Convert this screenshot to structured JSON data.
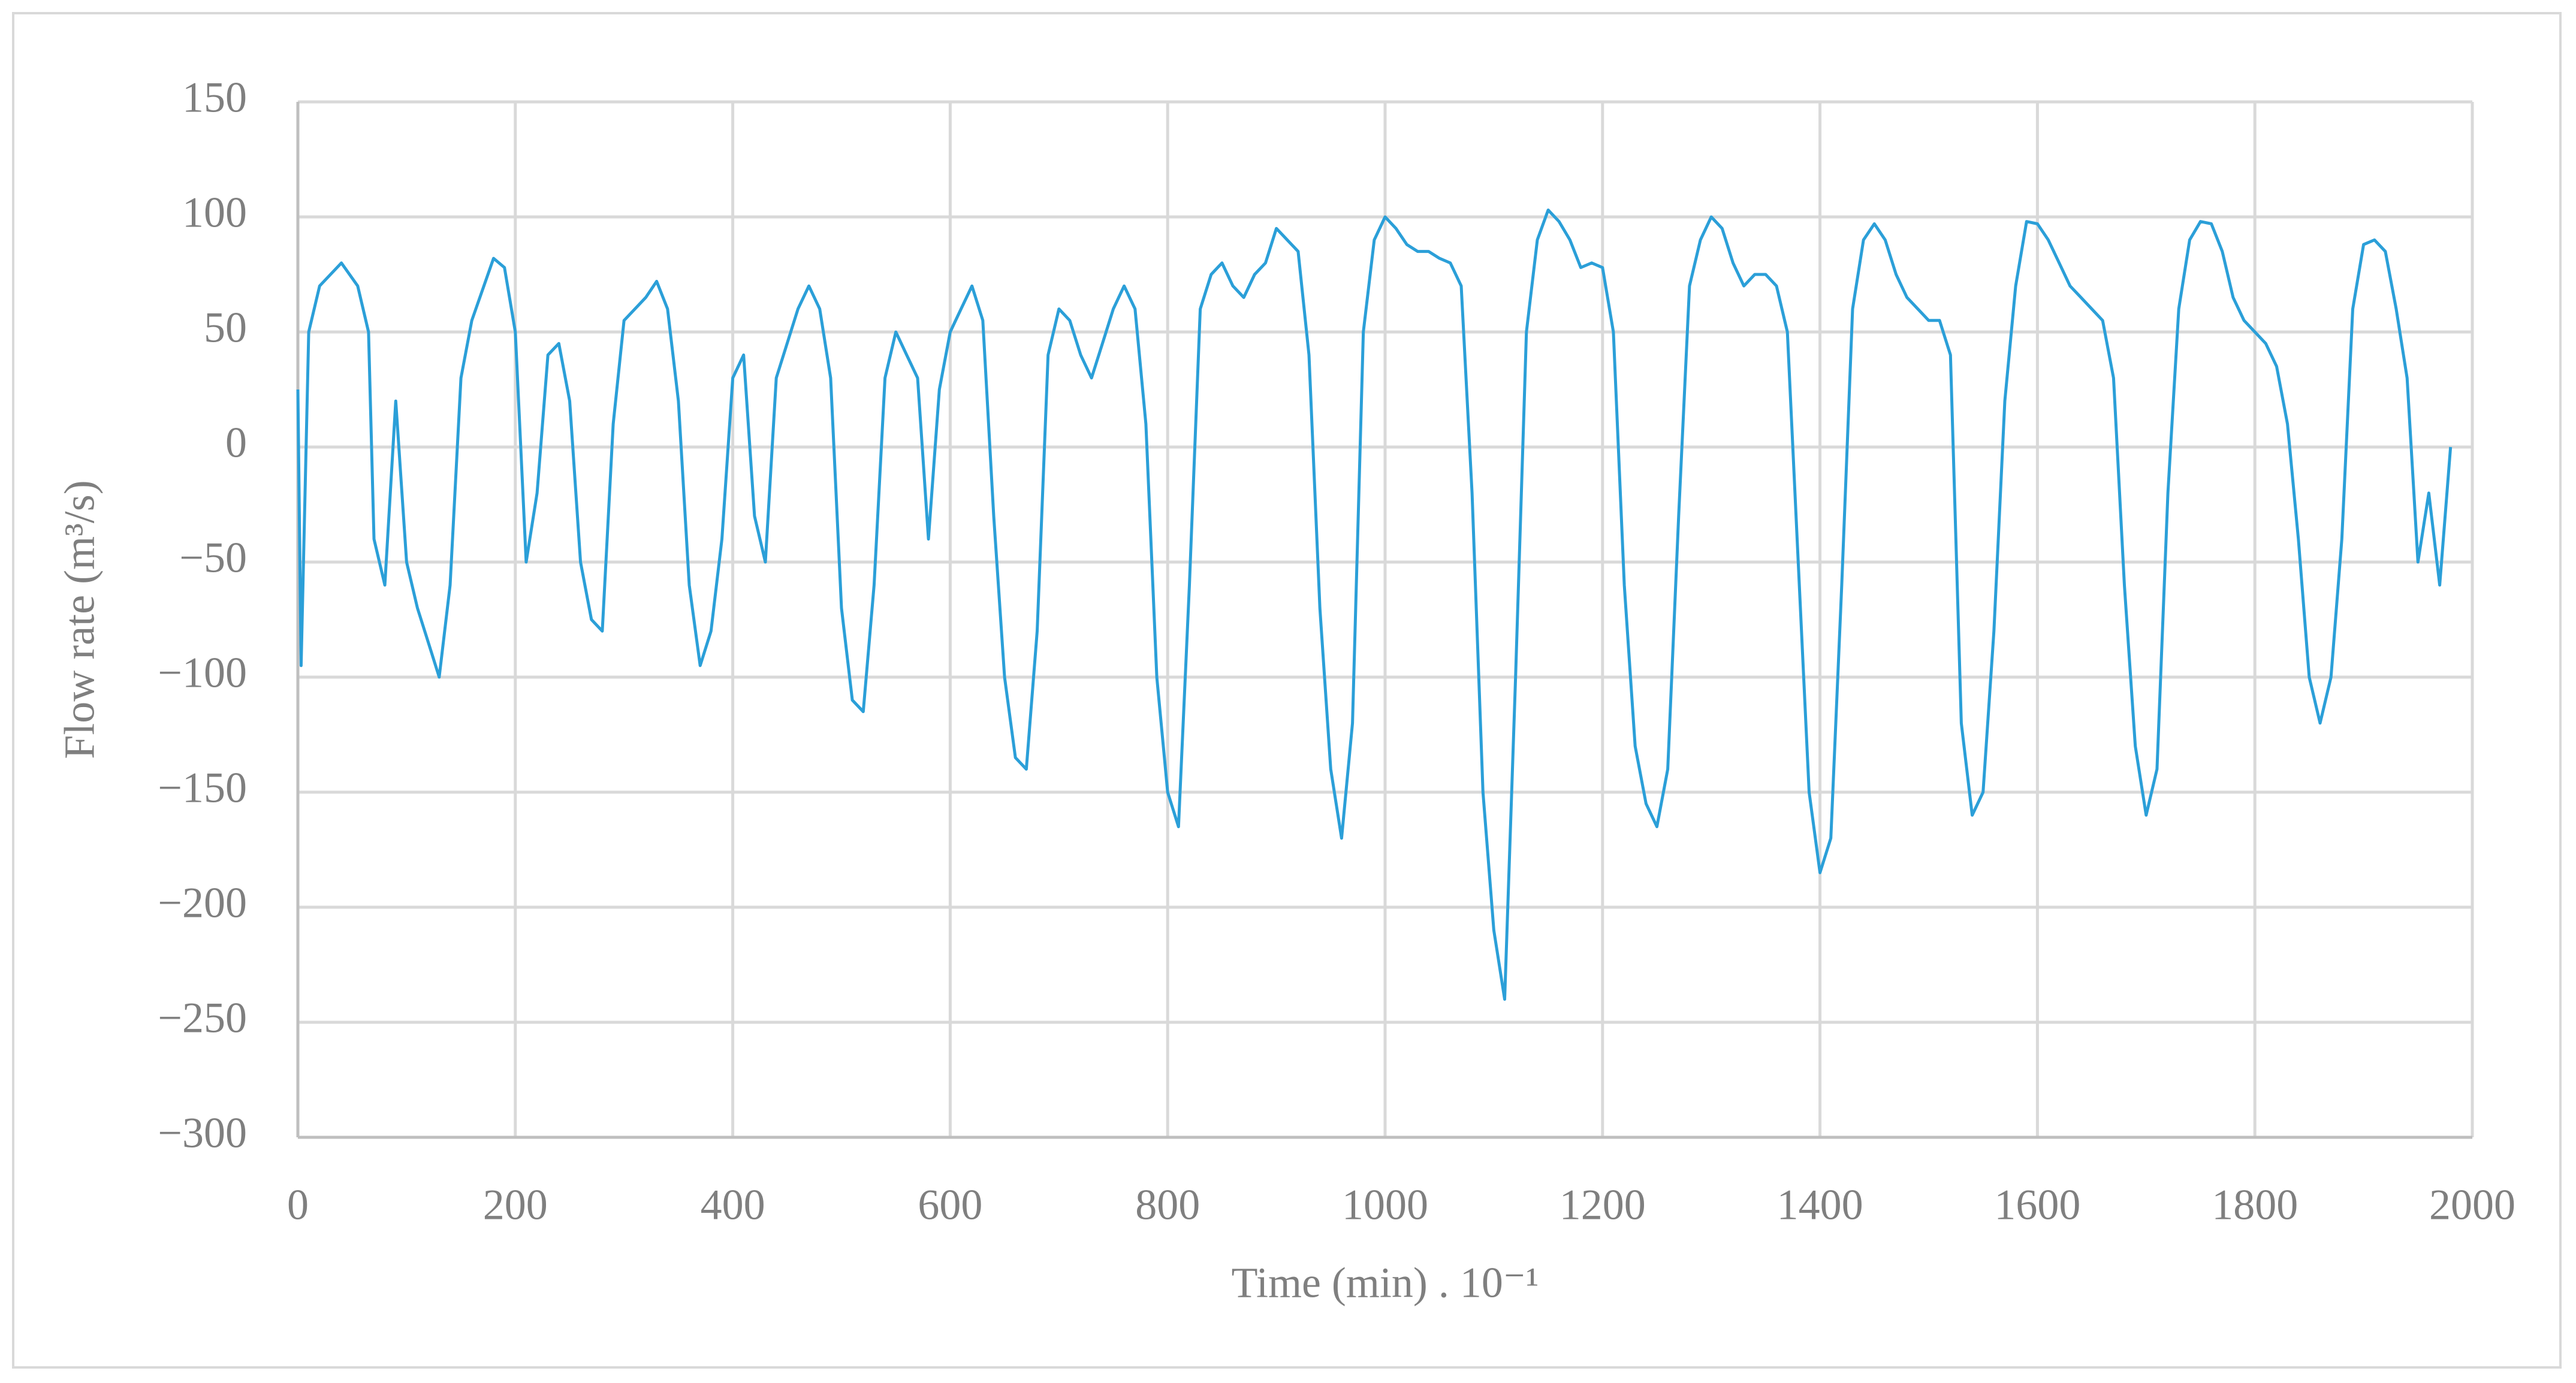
{
  "chart_data": {
    "type": "line",
    "xlabel": "Time  (min) . 10⁻¹",
    "ylabel": "Flow rate (m³/s)",
    "color": "#2b9fd8",
    "grid": true,
    "xlim": [
      0,
      2000
    ],
    "ylim": [
      -300,
      150
    ],
    "xticks": [
      0,
      200,
      400,
      600,
      800,
      1000,
      1200,
      1400,
      1600,
      1800,
      2000
    ],
    "yticks": [
      {
        "value": -300,
        "label": "−300"
      },
      {
        "value": -250,
        "label": "−250"
      },
      {
        "value": -200,
        "label": "−200"
      },
      {
        "value": -150,
        "label": "−150"
      },
      {
        "value": -100,
        "label": "−100"
      },
      {
        "value": -50,
        "label": "−50"
      },
      0,
      50,
      100,
      150
    ],
    "x": [
      0,
      3,
      10,
      20,
      40,
      55,
      65,
      70,
      80,
      90,
      100,
      110,
      120,
      130,
      140,
      150,
      160,
      180,
      190,
      200,
      210,
      220,
      230,
      240,
      250,
      260,
      270,
      280,
      290,
      300,
      320,
      330,
      340,
      350,
      360,
      370,
      380,
      390,
      400,
      410,
      420,
      430,
      440,
      460,
      470,
      480,
      490,
      500,
      510,
      520,
      530,
      540,
      550,
      560,
      570,
      580,
      590,
      600,
      610,
      620,
      630,
      640,
      650,
      660,
      670,
      680,
      690,
      700,
      710,
      720,
      730,
      740,
      750,
      760,
      770,
      780,
      790,
      800,
      810,
      820,
      830,
      840,
      850,
      860,
      870,
      880,
      890,
      900,
      910,
      920,
      930,
      940,
      950,
      960,
      970,
      980,
      990,
      1000,
      1010,
      1020,
      1030,
      1040,
      1050,
      1060,
      1070,
      1080,
      1090,
      1100,
      1110,
      1120,
      1130,
      1140,
      1150,
      1160,
      1170,
      1180,
      1190,
      1200,
      1210,
      1220,
      1230,
      1240,
      1250,
      1260,
      1270,
      1280,
      1290,
      1300,
      1310,
      1320,
      1330,
      1340,
      1350,
      1360,
      1370,
      1380,
      1390,
      1400,
      1410,
      1420,
      1430,
      1440,
      1450,
      1460,
      1470,
      1480,
      1490,
      1500,
      1510,
      1520,
      1530,
      1540,
      1550,
      1560,
      1570,
      1580,
      1590,
      1600,
      1610,
      1620,
      1630,
      1640,
      1650,
      1660,
      1670,
      1680,
      1690,
      1700,
      1710,
      1720,
      1730,
      1740,
      1750,
      1760,
      1770,
      1780,
      1790,
      1800,
      1810,
      1820,
      1830,
      1840,
      1850,
      1860,
      1870,
      1880,
      1890,
      1900,
      1910,
      1920,
      1930,
      1940,
      1950,
      1960,
      1970,
      1980
    ],
    "values": [
      25,
      -95,
      50,
      70,
      80,
      70,
      50,
      -40,
      -60,
      20,
      -50,
      -70,
      -85,
      -100,
      -60,
      30,
      55,
      82,
      78,
      50,
      -50,
      -20,
      40,
      45,
      20,
      -50,
      -75,
      -80,
      10,
      55,
      65,
      72,
      60,
      20,
      -60,
      -95,
      -80,
      -40,
      30,
      40,
      -30,
      -50,
      30,
      60,
      70,
      60,
      30,
      -70,
      -110,
      -115,
      -60,
      30,
      50,
      40,
      30,
      -40,
      25,
      50,
      60,
      70,
      55,
      -30,
      -100,
      -135,
      -140,
      -80,
      40,
      60,
      55,
      40,
      30,
      45,
      60,
      70,
      60,
      10,
      -100,
      -150,
      -165,
      -60,
      60,
      75,
      80,
      70,
      65,
      75,
      80,
      95,
      90,
      85,
      40,
      -70,
      -140,
      -170,
      -120,
      50,
      90,
      100,
      95,
      88,
      85,
      85,
      82,
      80,
      70,
      -20,
      -150,
      -210,
      -240,
      -100,
      50,
      90,
      103,
      98,
      90,
      78,
      80,
      78,
      50,
      -60,
      -130,
      -155,
      -165,
      -140,
      -30,
      70,
      90,
      100,
      95,
      80,
      70,
      75,
      75,
      70,
      50,
      -50,
      -150,
      -185,
      -170,
      -60,
      60,
      90,
      97,
      90,
      75,
      65,
      60,
      55,
      55,
      40,
      -120,
      -160,
      -150,
      -80,
      20,
      70,
      98,
      97,
      90,
      80,
      70,
      65,
      60,
      55,
      30,
      -60,
      -130,
      -160,
      -140,
      -20,
      60,
      90,
      98,
      97,
      85,
      65,
      55,
      50,
      45,
      35,
      10,
      -40,
      -100,
      -120,
      -100,
      -40,
      60,
      88,
      90,
      85,
      60,
      30,
      -50,
      -20,
      -60,
      0
    ]
  }
}
